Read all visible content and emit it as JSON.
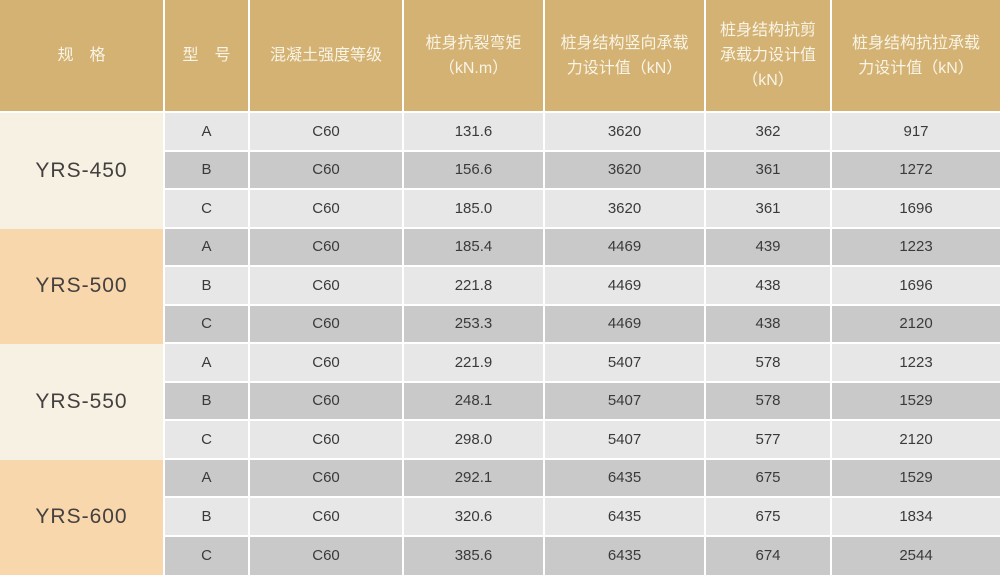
{
  "colors": {
    "header_bg": "#D4B273",
    "header_text": "#F8F4E6",
    "row_light": "#E7E7E7",
    "row_dark": "#C9C9C9",
    "spec_cream": "#F6F1E2",
    "spec_peach": "#F8D7AC",
    "grid_line": "#FFFFFF",
    "body_text": "#3A3A3A"
  },
  "chart_data": {
    "type": "table",
    "columns": [
      "规　格",
      "型　号",
      "混凝土强度等级",
      "桩身抗裂弯矩\n（kN.m）",
      "桩身结构竖向承载\n力设计值（kN）",
      "桩身结构抗剪\n承载力设计值\n（kN）",
      "桩身结构抗拉承载\n力设计值（kN）"
    ],
    "groups": [
      {
        "spec": "YRS-450",
        "shade": "cream",
        "rows": [
          {
            "cells": [
              "A",
              "C60",
              "131.6",
              "3620",
              "362",
              "917"
            ]
          },
          {
            "cells": [
              "B",
              "C60",
              "156.6",
              "3620",
              "361",
              "1272"
            ]
          },
          {
            "cells": [
              "C",
              "C60",
              "185.0",
              "3620",
              "361",
              "1696"
            ]
          }
        ]
      },
      {
        "spec": "YRS-500",
        "shade": "peach",
        "rows": [
          {
            "cells": [
              "A",
              "C60",
              "185.4",
              "4469",
              "439",
              "1223"
            ]
          },
          {
            "cells": [
              "B",
              "C60",
              "221.8",
              "4469",
              "438",
              "1696"
            ]
          },
          {
            "cells": [
              "C",
              "C60",
              "253.3",
              "4469",
              "438",
              "2120"
            ]
          }
        ]
      },
      {
        "spec": "YRS-550",
        "shade": "cream",
        "rows": [
          {
            "cells": [
              "A",
              "C60",
              "221.9",
              "5407",
              "578",
              "1223"
            ]
          },
          {
            "cells": [
              "B",
              "C60",
              "248.1",
              "5407",
              "578",
              "1529"
            ]
          },
          {
            "cells": [
              "C",
              "C60",
              "298.0",
              "5407",
              "577",
              "2120"
            ]
          }
        ]
      },
      {
        "spec": "YRS-600",
        "shade": "peach",
        "rows": [
          {
            "cells": [
              "A",
              "C60",
              "292.1",
              "6435",
              "675",
              "1529"
            ]
          },
          {
            "cells": [
              "B",
              "C60",
              "320.6",
              "6435",
              "675",
              "1834"
            ]
          },
          {
            "cells": [
              "C",
              "C60",
              "385.6",
              "6435",
              "674",
              "2544"
            ]
          }
        ]
      }
    ]
  }
}
